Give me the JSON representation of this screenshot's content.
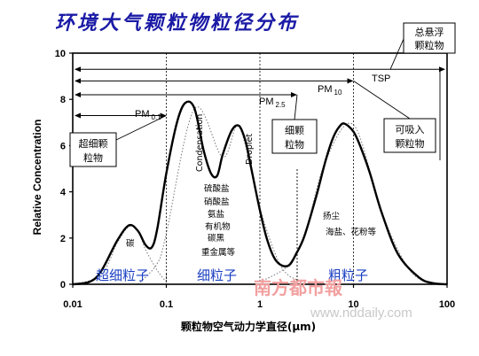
{
  "title": "环境大气颗粒物粒径分布",
  "watermark": "南方都市報",
  "site": "www.nddaily.com",
  "chart_data": {
    "type": "line",
    "title": "环境大气颗粒物粒径分布",
    "xlabel": "颗粒物空气动力学直径(μm)",
    "ylabel": "Relative Concentration",
    "x_scale": "log",
    "xlim": [
      0.01,
      100
    ],
    "ylim": [
      0,
      10
    ],
    "x_ticks": [
      "0.01",
      "0.1",
      "1",
      "10",
      "100"
    ],
    "y_ticks": [
      "0",
      "2",
      "4",
      "6",
      "8",
      "10"
    ],
    "series": [
      {
        "x": [
          0.01,
          0.015,
          0.02,
          0.03,
          0.04,
          0.05,
          0.06,
          0.07,
          0.08,
          0.1,
          0.13,
          0.16,
          0.2,
          0.25,
          0.3,
          0.35,
          0.4,
          0.5,
          0.6,
          0.7,
          0.8,
          1.0,
          1.2,
          1.5,
          2.0,
          2.5,
          3,
          4,
          5,
          6,
          7,
          8,
          10,
          12,
          15,
          20,
          30,
          50,
          70,
          100
        ],
        "values": [
          0.0,
          0.1,
          0.55,
          1.9,
          2.55,
          2.3,
          1.7,
          1.6,
          2.4,
          4.8,
          7.0,
          7.85,
          7.6,
          5.8,
          4.8,
          4.7,
          5.6,
          6.65,
          6.85,
          6.2,
          5.1,
          3.2,
          1.9,
          1.0,
          0.8,
          1.4,
          2.1,
          3.8,
          5.3,
          6.3,
          6.8,
          6.95,
          6.6,
          5.9,
          4.8,
          3.1,
          1.3,
          0.3,
          0.05,
          0.0
        ]
      }
    ],
    "dotted_modes": [
      {
        "x": [
          0.01,
          0.02,
          0.03,
          0.04,
          0.05,
          0.06,
          0.08,
          0.1
        ],
        "values": [
          0.0,
          0.4,
          1.8,
          2.5,
          2.3,
          1.5,
          0.6,
          0.1
        ]
      },
      {
        "x": [
          0.05,
          0.08,
          0.1,
          0.2,
          0.4,
          0.6,
          1.0,
          1.5,
          2.0,
          3.0
        ],
        "values": [
          0.0,
          0.9,
          2.2,
          7.6,
          5.5,
          6.8,
          3.3,
          1.2,
          0.4,
          0.1
        ]
      },
      {
        "x": [
          1.0,
          2.0,
          3.0,
          5.0,
          10.0,
          20.0,
          40.0,
          70.0
        ],
        "values": [
          0.1,
          0.8,
          2.1,
          5.3,
          6.9,
          3.1,
          0.6,
          0.05
        ]
      }
    ],
    "size_ranges": [
      {
        "label": "PM",
        "sub": "0.1",
        "upper": 0.1,
        "y": 7.3
      },
      {
        "label": "PM",
        "sub": "2.5",
        "upper": 2.5,
        "y": 8.2
      },
      {
        "label": "PM",
        "sub": "10",
        "upper": 10,
        "y": 8.8
      },
      {
        "label": "TSP",
        "upper": 100,
        "y": 9.3
      }
    ],
    "boxes": [
      {
        "label_lines": [
          "超细颗",
          "粒物"
        ],
        "position": "left"
      },
      {
        "label_lines": [
          "细颗",
          "粒物"
        ],
        "position": "center"
      },
      {
        "label_lines": [
          "可吸入",
          "颗粒物"
        ],
        "position": "right"
      },
      {
        "label_lines": [
          "总悬浮",
          "颗粒物"
        ],
        "position": "top-right"
      }
    ],
    "annotations": {
      "carbon": "碳",
      "fine_components": [
        "硫酸盐",
        "硝酸盐",
        "氨盐",
        "有机物",
        "碳黑",
        "重金属等"
      ],
      "condensation": "Condensation",
      "droplet": "Droplet",
      "coarse_components": [
        "扬尘",
        "海盐、花粉等"
      ]
    },
    "mode_labels": [
      "超细粒子",
      "细粒子",
      "粗粒子"
    ]
  }
}
